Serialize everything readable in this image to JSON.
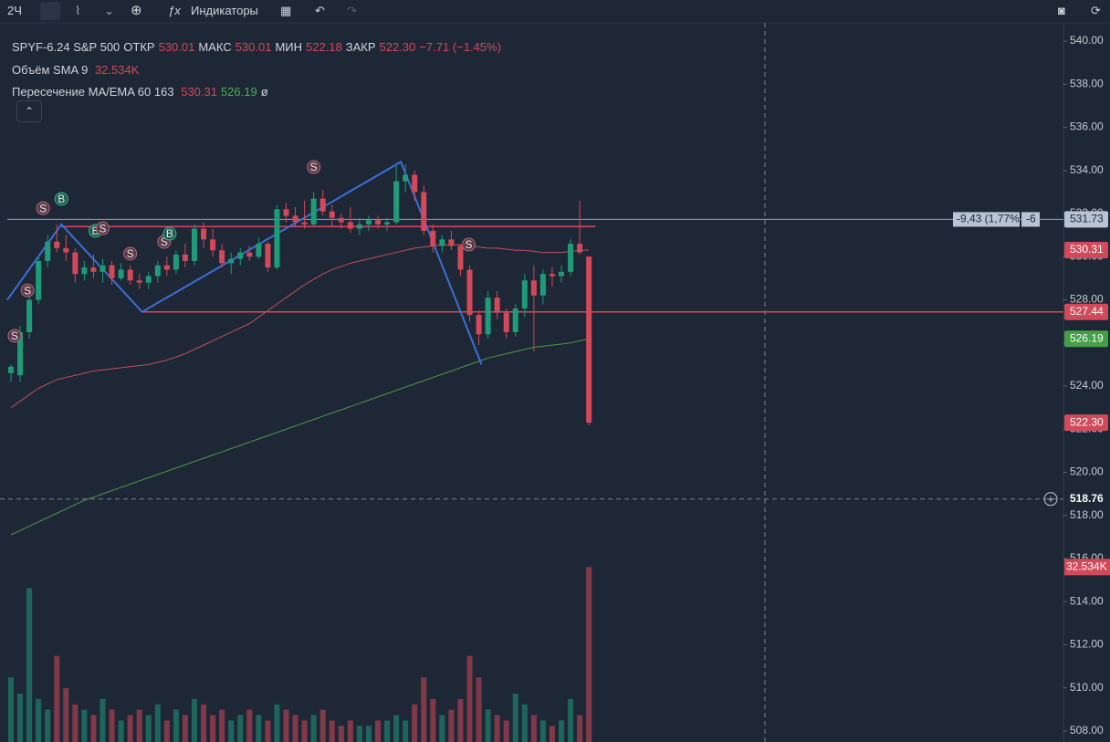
{
  "toolbar": {
    "interval": "2Ч",
    "indicators": "Индикаторы"
  },
  "legend": {
    "symbol": "SPYF-6.24 S&P 500",
    "open_label": "ОТКР",
    "open": "530.01",
    "high_label": "МАКС",
    "high": "530.01",
    "low_label": "МИН",
    "low": "522.18",
    "close_label": "ЗАКР",
    "close": "522.30",
    "change": "−7.71 (−1.45%)",
    "volume_name": "Объём SMA 9",
    "volume": "32.534K",
    "ma_name": "Пересечение MA/EMA 60 163",
    "ma": "530.31",
    "ema": "526.19",
    "ma_flag": "ø"
  },
  "chart": {
    "type": "candlestick",
    "ylim": [
      507.49,
      540.85
    ],
    "yticks": [
      {
        "value": 540,
        "label": "540.00"
      },
      {
        "value": 538,
        "label": "538.00"
      },
      {
        "value": 536,
        "label": "536.00"
      },
      {
        "value": 534,
        "label": "534.00"
      },
      {
        "value": 532,
        "label": "532.00"
      },
      {
        "value": 530,
        "label": "530.00"
      },
      {
        "value": 528,
        "label": "528.00"
      },
      {
        "value": 526,
        "label": "526.00"
      },
      {
        "value": 524,
        "label": "524.00"
      },
      {
        "value": 522,
        "label": "522.00"
      },
      {
        "value": 520,
        "label": "520.00"
      },
      {
        "value": 518,
        "label": "518.00"
      },
      {
        "value": 516,
        "label": "516.00"
      },
      {
        "value": 514,
        "label": "514.00"
      },
      {
        "value": 512,
        "label": "512.00"
      },
      {
        "value": 510,
        "label": "510.00"
      },
      {
        "value": 508,
        "label": "508.00"
      }
    ],
    "up_color": "#1f9b7a",
    "down_color": "#d2495a",
    "candles": [
      [
        524.6,
        525,
        524.2,
        524.9
      ],
      [
        524.5,
        526.8,
        524.2,
        526.5
      ],
      [
        526.5,
        528.2,
        526.2,
        528
      ],
      [
        528,
        530,
        527.8,
        529.8
      ],
      [
        529.8,
        531,
        529.5,
        530.7
      ],
      [
        530.7,
        531.5,
        530.2,
        530.4
      ],
      [
        530.4,
        531,
        529.8,
        530.2
      ],
      [
        530.2,
        530.4,
        528.8,
        529.2
      ],
      [
        529.2,
        529.8,
        528.9,
        529.5
      ],
      [
        529.5,
        530.1,
        529,
        529.3
      ],
      [
        529.3,
        529.9,
        528.8,
        529.6
      ],
      [
        529.6,
        529.8,
        528.7,
        529
      ],
      [
        529,
        529.7,
        528.9,
        529.4
      ],
      [
        529.4,
        529.6,
        528.7,
        528.9
      ],
      [
        528.9,
        529.2,
        528.5,
        528.8
      ],
      [
        528.8,
        529.3,
        528.5,
        529.1
      ],
      [
        529.1,
        529.8,
        528.8,
        529.6
      ],
      [
        529.6,
        530,
        529.1,
        529.4
      ],
      [
        529.4,
        530.3,
        529.2,
        530.1
      ],
      [
        530.1,
        530.6,
        529.5,
        529.8
      ],
      [
        529.8,
        531.5,
        529.6,
        531.3
      ],
      [
        531.3,
        531.6,
        530.4,
        530.8
      ],
      [
        530.8,
        531.3,
        530,
        530.3
      ],
      [
        530.3,
        530.6,
        529.5,
        529.7
      ],
      [
        529.7,
        530.2,
        529.2,
        529.9
      ],
      [
        529.9,
        530.4,
        529.6,
        530.2
      ],
      [
        530.2,
        530.5,
        529.8,
        530
      ],
      [
        530,
        530.9,
        529.9,
        530.6
      ],
      [
        530.6,
        530.7,
        529.3,
        529.5
      ],
      [
        529.5,
        532.4,
        529.4,
        532.2
      ],
      [
        532.2,
        532.5,
        531.6,
        531.9
      ],
      [
        531.9,
        532.3,
        531.4,
        531.6
      ],
      [
        531.6,
        532.6,
        531.3,
        531.5
      ],
      [
        531.5,
        533,
        531.4,
        532.7
      ],
      [
        532.7,
        533.1,
        531.9,
        532.1
      ],
      [
        532.1,
        532.4,
        531.4,
        531.8
      ],
      [
        531.8,
        532,
        531.3,
        531.6
      ],
      [
        531.6,
        532.3,
        531.1,
        531.3
      ],
      [
        531.3,
        531.8,
        531,
        531.5
      ],
      [
        531.5,
        531.9,
        531.2,
        531.7
      ],
      [
        531.7,
        531.9,
        531.3,
        531.5
      ],
      [
        531.5,
        531.8,
        531.2,
        531.6
      ],
      [
        531.6,
        534.2,
        531.5,
        533.5
      ],
      [
        533.5,
        534.3,
        533,
        533.8
      ],
      [
        533.8,
        534,
        532.6,
        533
      ],
      [
        533,
        533.3,
        531,
        531.2
      ],
      [
        531.2,
        531.5,
        530.2,
        530.5
      ],
      [
        530.5,
        531,
        530.2,
        530.8
      ],
      [
        530.8,
        531.2,
        530.3,
        530.5
      ],
      [
        530.5,
        530.6,
        529.1,
        529.4
      ],
      [
        529.4,
        529.6,
        527,
        527.3
      ],
      [
        527.3,
        527.5,
        525.9,
        526.4
      ],
      [
        526.4,
        528.4,
        526.2,
        528.1
      ],
      [
        528.1,
        528.4,
        527.1,
        527.4
      ],
      [
        527.4,
        527.6,
        526.2,
        526.5
      ],
      [
        526.5,
        527.8,
        526.3,
        527.6
      ],
      [
        527.6,
        529.2,
        527.2,
        528.9
      ],
      [
        528.9,
        529.6,
        525.6,
        528.2
      ],
      [
        528.2,
        529.4,
        527.8,
        529.2
      ],
      [
        529.2,
        529.5,
        528.6,
        529.1
      ],
      [
        529.1,
        529.6,
        528.8,
        529.3
      ],
      [
        529.3,
        530.8,
        529.1,
        530.6
      ],
      [
        530.6,
        532.6,
        530.1,
        530.2
      ],
      [
        530.01,
        530.01,
        522.18,
        522.3
      ]
    ],
    "volume_lim": [
      0,
      37
    ],
    "volumes": [
      12,
      9,
      28.6,
      8,
      6,
      16,
      10,
      7,
      6,
      5,
      8,
      6,
      4,
      5,
      6,
      5,
      7,
      4,
      6,
      5,
      8,
      7,
      5,
      6,
      4,
      5,
      6,
      5,
      4,
      7,
      6,
      5,
      4,
      5,
      6,
      4,
      3,
      4,
      3,
      3,
      4,
      4,
      5,
      4,
      7,
      12,
      8,
      5,
      6,
      8,
      16,
      12,
      6,
      5,
      4,
      9,
      7,
      5,
      4,
      3,
      4,
      8,
      5,
      32.534
    ],
    "ma_series": [
      {
        "name": "MA 60",
        "color": "#c0505c",
        "values": [
          523.0,
          523.3,
          523.6,
          523.9,
          524.1,
          524.3,
          524.4,
          524.5,
          524.6,
          524.7,
          524.75,
          524.8,
          524.85,
          524.9,
          524.95,
          525.0,
          525.1,
          525.2,
          525.35,
          525.5,
          525.7,
          525.9,
          526.1,
          526.3,
          526.5,
          526.7,
          526.9,
          527.2,
          527.5,
          527.8,
          528.1,
          528.4,
          528.7,
          528.95,
          529.2,
          529.4,
          529.55,
          529.7,
          529.8,
          529.9,
          530.0,
          530.1,
          530.2,
          530.3,
          530.4,
          530.45,
          530.5,
          530.55,
          530.55,
          530.55,
          530.5,
          530.45,
          530.4,
          530.4,
          530.35,
          530.3,
          530.3,
          530.25,
          530.2,
          530.2,
          530.2,
          530.25,
          530.3,
          530.31
        ]
      },
      {
        "name": "EMA 163",
        "color": "#4c9a4c",
        "values": [
          517.1,
          517.3,
          517.5,
          517.7,
          517.9,
          518.1,
          518.3,
          518.5,
          518.7,
          518.85,
          519.0,
          519.15,
          519.3,
          519.45,
          519.6,
          519.75,
          519.9,
          520.05,
          520.2,
          520.35,
          520.5,
          520.65,
          520.8,
          520.95,
          521.1,
          521.25,
          521.4,
          521.55,
          521.7,
          521.85,
          522.0,
          522.15,
          522.3,
          522.45,
          522.6,
          522.75,
          522.9,
          523.05,
          523.2,
          523.35,
          523.5,
          523.65,
          523.8,
          523.95,
          524.1,
          524.25,
          524.4,
          524.55,
          524.7,
          524.85,
          525.0,
          525.15,
          525.3,
          525.4,
          525.5,
          525.6,
          525.7,
          525.8,
          525.85,
          525.9,
          525.95,
          526.0,
          526.1,
          526.19
        ]
      }
    ],
    "zigzag": {
      "color": "#3b6fd6",
      "candle": [
        -0.4,
        5.5,
        14.3,
        42.5,
        51.3
      ],
      "price": [
        528,
        531.5,
        527.44,
        534.4,
        525
      ]
    },
    "levels": [
      {
        "price": 531.4,
        "from": 5.5,
        "to": 63.7,
        "color": "#d2495a"
      },
      {
        "price": 527.44,
        "from": 14.3,
        "to": null,
        "color": "#d2495a"
      }
    ],
    "signals": [
      {
        "label": "S",
        "candle": 0.4,
        "price": 526.33
      },
      {
        "label": "S",
        "candle": 1.8,
        "price": 528.44
      },
      {
        "label": "S",
        "candle": 3.5,
        "price": 532.25
      },
      {
        "label": "B",
        "candle": 5.5,
        "price": 532.68
      },
      {
        "label": "B",
        "candle": 9.2,
        "price": 531.2
      },
      {
        "label": "S",
        "candle": 10,
        "price": 531.32
      },
      {
        "label": "S",
        "candle": 13,
        "price": 530.14
      },
      {
        "label": "S",
        "candle": 16.7,
        "price": 530.69
      },
      {
        "label": "B",
        "candle": 17.3,
        "price": 531.07
      },
      {
        "label": "S",
        "candle": 33,
        "price": 534.16
      },
      {
        "label": "S",
        "candle": 49.9,
        "price": 530.56
      }
    ],
    "price_badges": [
      {
        "value": 531.73,
        "label": "531.73",
        "color": "#b8c4d6",
        "text": "#1e2735"
      },
      {
        "value": 530.31,
        "label": "530.31",
        "color": "#d2495a",
        "text": "#ffffff"
      },
      {
        "value": 527.44,
        "label": "527.44",
        "color": "#d2495a",
        "text": "#ffffff"
      },
      {
        "value": 526.19,
        "label": "526.19",
        "color": "#43a047",
        "text": "#ffffff"
      },
      {
        "value": 522.3,
        "label": "522.30",
        "color": "#d2495a",
        "text": "#ffffff"
      }
    ],
    "measure": {
      "price": 531.73,
      "text": "-9,43 (1,77%)",
      "bars": "-6"
    },
    "crosshair": {
      "price": 518.76,
      "label": "518.76"
    },
    "volume_badge": {
      "value": 32.534,
      "label": "32.534K"
    }
  }
}
